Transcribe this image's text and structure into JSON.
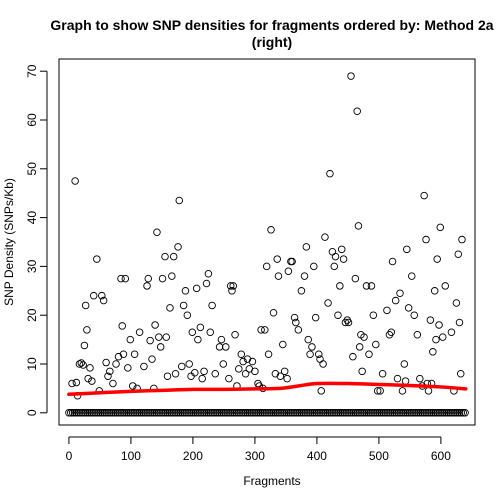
{
  "chart_data": {
    "type": "scatter",
    "title_line1": "Graph to show SNP densities for fragments ordered by: Method 2a",
    "title_line2": "(right)",
    "xlabel": "Fragments",
    "ylabel": "SNP Density (SNPs/Kb)",
    "xlim": [
      -16,
      655
    ],
    "ylim": [
      -2.5,
      72.5
    ],
    "xticks": [
      0,
      100,
      200,
      300,
      400,
      500,
      600
    ],
    "yticks": [
      0,
      10,
      20,
      30,
      40,
      50,
      60,
      70
    ],
    "marker": "open-circle",
    "point_color": "#000000",
    "trend_color": "#ff0000",
    "points": [
      [
        5,
        6
      ],
      [
        10,
        47.5
      ],
      [
        12,
        6.2
      ],
      [
        14,
        3.5
      ],
      [
        17,
        10
      ],
      [
        20,
        10.2
      ],
      [
        23,
        9.8
      ],
      [
        25,
        13.8
      ],
      [
        27,
        22
      ],
      [
        29,
        17
      ],
      [
        31,
        7
      ],
      [
        34,
        9.2
      ],
      [
        37,
        6.5
      ],
      [
        40,
        24
      ],
      [
        45,
        31.5
      ],
      [
        49,
        4.5
      ],
      [
        53,
        24
      ],
      [
        56,
        23
      ],
      [
        60,
        10.3
      ],
      [
        63,
        7.5
      ],
      [
        66,
        8.5
      ],
      [
        71,
        6
      ],
      [
        76,
        10
      ],
      [
        80,
        11.5
      ],
      [
        84,
        27.5
      ],
      [
        86,
        17.8
      ],
      [
        88,
        12
      ],
      [
        91,
        27.5
      ],
      [
        95,
        9.2
      ],
      [
        99,
        15
      ],
      [
        103,
        5.5
      ],
      [
        106,
        12
      ],
      [
        110,
        5
      ],
      [
        114,
        16.5
      ],
      [
        121,
        9.5
      ],
      [
        126,
        26
      ],
      [
        128,
        27.5
      ],
      [
        131,
        14.8
      ],
      [
        134,
        11
      ],
      [
        137,
        5
      ],
      [
        139,
        18
      ],
      [
        142,
        37
      ],
      [
        145,
        15.5
      ],
      [
        148,
        13.5
      ],
      [
        151,
        27.5
      ],
      [
        155,
        32
      ],
      [
        157,
        15.5
      ],
      [
        159,
        7.5
      ],
      [
        163,
        21.5
      ],
      [
        166,
        28
      ],
      [
        169,
        32
      ],
      [
        172,
        8
      ],
      [
        176,
        34
      ],
      [
        178,
        43.5
      ],
      [
        182,
        9.5
      ],
      [
        185,
        22
      ],
      [
        188,
        25
      ],
      [
        191,
        20
      ],
      [
        194,
        10
      ],
      [
        197,
        7.5
      ],
      [
        199,
        16.5
      ],
      [
        203,
        8.2
      ],
      [
        206,
        25.5
      ],
      [
        208,
        15
      ],
      [
        212,
        17.5
      ],
      [
        215,
        7
      ],
      [
        218,
        8.5
      ],
      [
        222,
        26.5
      ],
      [
        225,
        28.5
      ],
      [
        228,
        16.5
      ],
      [
        231,
        22
      ],
      [
        236,
        8
      ],
      [
        243,
        13.5
      ],
      [
        246,
        15
      ],
      [
        249,
        10
      ],
      [
        253,
        13.5
      ],
      [
        258,
        7
      ],
      [
        261,
        26
      ],
      [
        263,
        25
      ],
      [
        265,
        26
      ],
      [
        268,
        16
      ],
      [
        271,
        5.5
      ],
      [
        274,
        9
      ],
      [
        278,
        12
      ],
      [
        281,
        10.5
      ],
      [
        285,
        8
      ],
      [
        288,
        11
      ],
      [
        291,
        9
      ],
      [
        296,
        10.5
      ],
      [
        300,
        8.5
      ],
      [
        305,
        6
      ],
      [
        307,
        5.5
      ],
      [
        310,
        17
      ],
      [
        313,
        5
      ],
      [
        316,
        17
      ],
      [
        319,
        30
      ],
      [
        322,
        12
      ],
      [
        326,
        37.5
      ],
      [
        330,
        20.5
      ],
      [
        333,
        8
      ],
      [
        336,
        31.5
      ],
      [
        338,
        28
      ],
      [
        341,
        7.5
      ],
      [
        345,
        14
      ],
      [
        348,
        8.5
      ],
      [
        352,
        7
      ],
      [
        354,
        29
      ],
      [
        358,
        31
      ],
      [
        360,
        31
      ],
      [
        364,
        19.5
      ],
      [
        366,
        18.5
      ],
      [
        370,
        17
      ],
      [
        375,
        25
      ],
      [
        380,
        28
      ],
      [
        383,
        34
      ],
      [
        386,
        15
      ],
      [
        389,
        12
      ],
      [
        392,
        13.5
      ],
      [
        395,
        30
      ],
      [
        398,
        19.5
      ],
      [
        403,
        12
      ],
      [
        405,
        11
      ],
      [
        407,
        4.5
      ],
      [
        410,
        10
      ],
      [
        413,
        36
      ],
      [
        418,
        22.5
      ],
      [
        421,
        49
      ],
      [
        425,
        33
      ],
      [
        428,
        30
      ],
      [
        430,
        32
      ],
      [
        434,
        20
      ],
      [
        437,
        26
      ],
      [
        440,
        33.5
      ],
      [
        443,
        31.5
      ],
      [
        446,
        18.5
      ],
      [
        449,
        19
      ],
      [
        451,
        18.5
      ],
      [
        455,
        69
      ],
      [
        458,
        11.5
      ],
      [
        462,
        27.5
      ],
      [
        465,
        61.8
      ],
      [
        467,
        38.3
      ],
      [
        469,
        13.5
      ],
      [
        471,
        16
      ],
      [
        473,
        8.5
      ],
      [
        476,
        15.5
      ],
      [
        480,
        26
      ],
      [
        484,
        12
      ],
      [
        488,
        26
      ],
      [
        491,
        20
      ],
      [
        495,
        14
      ],
      [
        498,
        4.5
      ],
      [
        502,
        4.5
      ],
      [
        506,
        8
      ],
      [
        513,
        21
      ],
      [
        517,
        16
      ],
      [
        520,
        16.5
      ],
      [
        522,
        31
      ],
      [
        527,
        23
      ],
      [
        530,
        7
      ],
      [
        534,
        24.5
      ],
      [
        538,
        4.5
      ],
      [
        541,
        10
      ],
      [
        543,
        6.5
      ],
      [
        545,
        33.5
      ],
      [
        548,
        21.5
      ],
      [
        553,
        28
      ],
      [
        557,
        20
      ],
      [
        562,
        16
      ],
      [
        566,
        7
      ],
      [
        570,
        5.5
      ],
      [
        573,
        44.5
      ],
      [
        576,
        35.5
      ],
      [
        578,
        6
      ],
      [
        580,
        4.5
      ],
      [
        583,
        19
      ],
      [
        585,
        6
      ],
      [
        587,
        12.5
      ],
      [
        590,
        25
      ],
      [
        592,
        15
      ],
      [
        594,
        31.5
      ],
      [
        597,
        18
      ],
      [
        599,
        38
      ],
      [
        603,
        15.5
      ],
      [
        607,
        26
      ],
      [
        617,
        16.5
      ],
      [
        621,
        4.5
      ],
      [
        625,
        22.5
      ],
      [
        628,
        32.5
      ],
      [
        630,
        18.5
      ],
      [
        632,
        8
      ],
      [
        634,
        35.5
      ]
    ],
    "zero_points": {
      "from": 0,
      "to": 640,
      "step": 3,
      "value": 0
    },
    "trend": [
      [
        0,
        3.8
      ],
      [
        50,
        4.1
      ],
      [
        100,
        4.4
      ],
      [
        150,
        4.6
      ],
      [
        200,
        4.8
      ],
      [
        250,
        4.8
      ],
      [
        300,
        4.9
      ],
      [
        340,
        5
      ],
      [
        370,
        5.5
      ],
      [
        400,
        6
      ],
      [
        450,
        6
      ],
      [
        500,
        5.8
      ],
      [
        550,
        5.6
      ],
      [
        600,
        5.3
      ],
      [
        640,
        4.9
      ]
    ]
  }
}
